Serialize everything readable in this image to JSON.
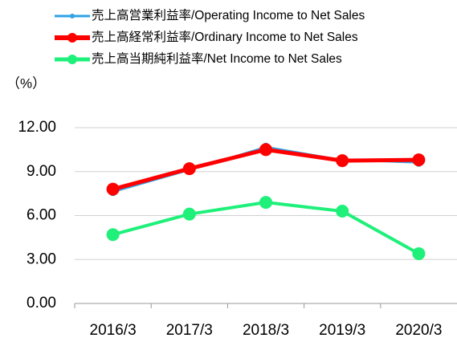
{
  "chart_data": {
    "type": "line",
    "y_label": "（%）",
    "categories": [
      "2016/3",
      "2017/3",
      "2018/3",
      "2019/3",
      "2020/3"
    ],
    "series": [
      {
        "name": "売上高営業利益率/Operating Income to Net Sales",
        "color": "#2fa3e6",
        "values": [
          7.6,
          9.1,
          10.7,
          9.8,
          9.6
        ]
      },
      {
        "name": "売上高経常利益率/Ordinary Income to Net Sales",
        "color": "#ff0000",
        "values": [
          7.8,
          9.2,
          10.5,
          9.75,
          9.8
        ]
      },
      {
        "name": "売上高当期純利益率/Net Income to Net Sales",
        "color": "#1ef07a",
        "values": [
          4.7,
          6.1,
          6.9,
          6.3,
          3.4
        ]
      }
    ],
    "ylim": [
      0,
      12
    ],
    "yticks": [
      {
        "value": 0,
        "label": "0.00"
      },
      {
        "value": 3,
        "label": "3.00"
      },
      {
        "value": 6,
        "label": "6.00"
      },
      {
        "value": 9,
        "label": "9.00"
      },
      {
        "value": 12,
        "label": "12.00"
      }
    ],
    "grid": true,
    "legend": "top"
  }
}
